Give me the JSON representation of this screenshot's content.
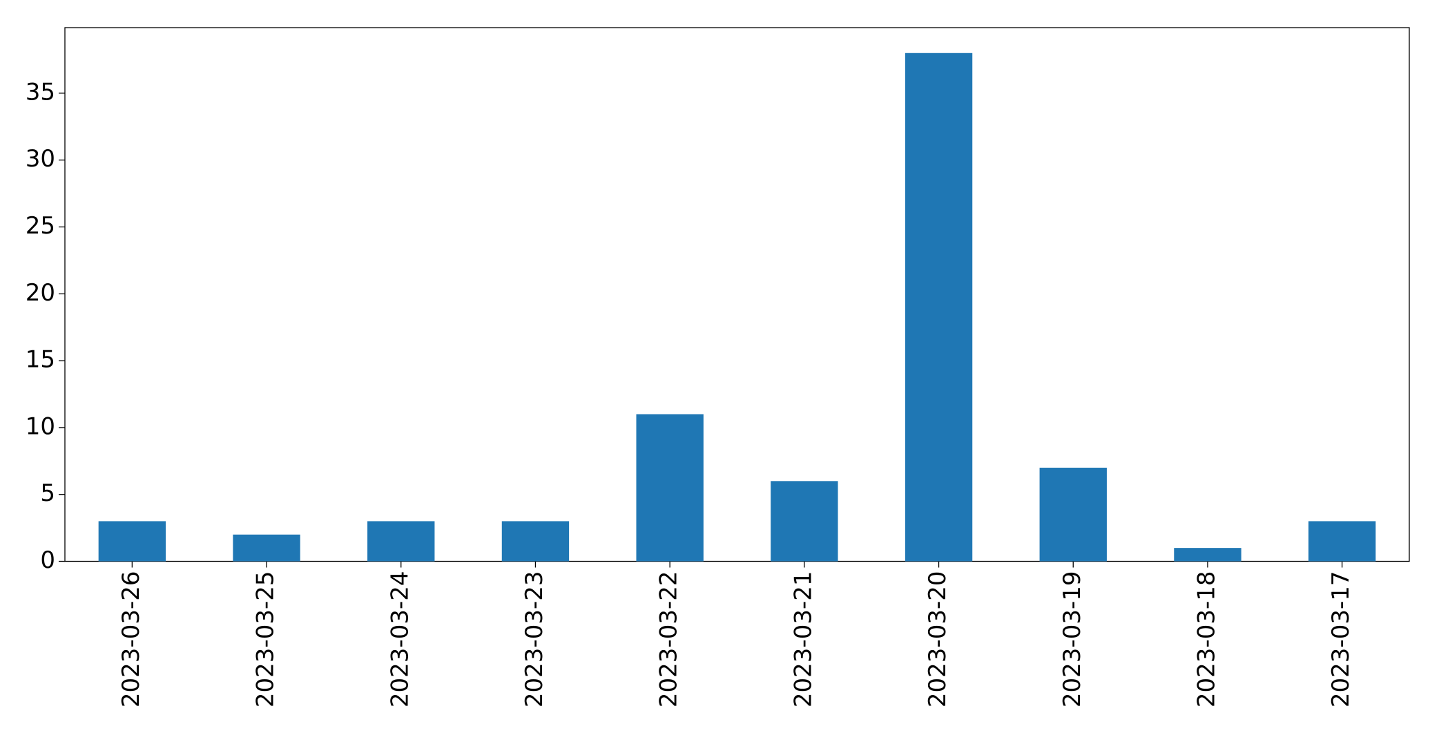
{
  "chart_data": {
    "type": "bar",
    "categories": [
      "2023-03-26",
      "2023-03-25",
      "2023-03-24",
      "2023-03-23",
      "2023-03-22",
      "2023-03-21",
      "2023-03-20",
      "2023-03-19",
      "2023-03-18",
      "2023-03-17"
    ],
    "values": [
      3,
      2,
      3,
      3,
      11,
      6,
      38,
      7,
      1,
      3
    ],
    "color": "#1f77b4",
    "ylim": [
      0,
      39.9
    ],
    "yticks": [
      0,
      5,
      10,
      15,
      20,
      25,
      30,
      35
    ],
    "grid": false
  }
}
